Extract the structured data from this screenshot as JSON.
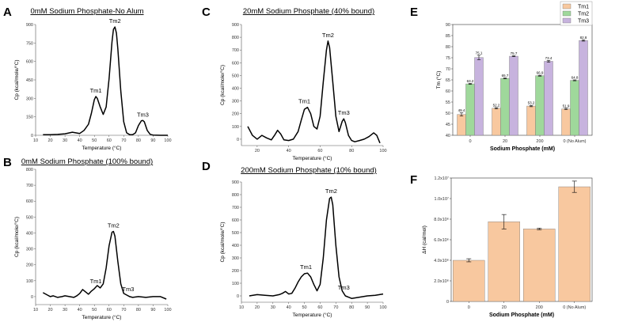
{
  "colors": {
    "tm1": "#f8c89f",
    "tm2": "#9fd89b",
    "tm3": "#c7b3de",
    "bar": "#f8c89f",
    "line": "#000000"
  },
  "chart_data": [
    {
      "id": "A",
      "type": "line",
      "title": "0mM Sodium Phosphate-No Alum",
      "xlabel": "Temperature (°C)",
      "ylabel": "Cp (kcal/mole/°C)",
      "xlim": [
        10,
        100
      ],
      "ylim": [
        0,
        900
      ],
      "xticks": [
        10,
        20,
        30,
        40,
        50,
        60,
        70,
        80,
        90,
        100
      ],
      "yticks": [
        0,
        150,
        300,
        450,
        600,
        750,
        900
      ],
      "x": [
        15,
        20,
        25,
        30,
        35,
        40,
        43,
        46,
        48,
        50,
        51,
        52,
        54,
        56,
        58,
        60,
        62,
        63,
        64,
        65,
        66,
        68,
        70,
        72,
        74,
        76,
        78,
        80,
        82,
        83,
        84,
        86,
        88,
        90,
        95,
        100
      ],
      "y": [
        5,
        5,
        7,
        12,
        25,
        15,
        40,
        90,
        180,
        290,
        315,
        300,
        230,
        170,
        230,
        460,
        760,
        860,
        880,
        830,
        700,
        360,
        110,
        20,
        5,
        5,
        20,
        80,
        118,
        120,
        110,
        40,
        8,
        2,
        0,
        0
      ],
      "annotations": [
        {
          "text": "Tm1",
          "x": 51,
          "y": 315
        },
        {
          "text": "Tm2",
          "x": 64,
          "y": 880
        },
        {
          "text": "Tm3",
          "x": 83,
          "y": 120
        }
      ]
    },
    {
      "id": "B",
      "type": "line",
      "title": "0mM Sodium Phosphate (100% bound)",
      "xlabel": "Temperature (°C)",
      "ylabel": "Cp (kcal/mole/°C)",
      "xlim": [
        10,
        100
      ],
      "ylim": [
        -50,
        800
      ],
      "xticks": [
        10,
        20,
        30,
        40,
        50,
        60,
        70,
        80,
        90,
        100
      ],
      "yticks": [
        0,
        100,
        200,
        300,
        400,
        500,
        600,
        700,
        800
      ],
      "x": [
        15,
        18,
        20,
        22,
        25,
        28,
        30,
        33,
        36,
        38,
        40,
        42,
        44,
        46,
        48,
        50,
        52,
        54,
        56,
        58,
        60,
        62,
        63,
        64,
        66,
        68,
        70,
        72,
        74,
        76,
        80,
        85,
        90,
        95,
        99
      ],
      "y": [
        25,
        10,
        0,
        5,
        -5,
        0,
        5,
        0,
        -5,
        5,
        20,
        45,
        30,
        15,
        35,
        50,
        70,
        55,
        80,
        180,
        320,
        405,
        410,
        380,
        220,
        80,
        20,
        10,
        0,
        -5,
        0,
        -5,
        0,
        0,
        -15
      ],
      "annotations": [
        {
          "text": "Tm1",
          "x": 51,
          "y": 60
        },
        {
          "text": "Tm2",
          "x": 63,
          "y": 410
        },
        {
          "text": "Tm3",
          "x": 73,
          "y": 10
        }
      ]
    },
    {
      "id": "C",
      "type": "line",
      "title": "20mM Sodium Phosphate (40% bound)",
      "xlabel": "Temperature (°C)",
      "ylabel": "Cp (kcal/mole/°C)",
      "xlim": [
        10,
        100
      ],
      "ylim": [
        -50,
        900
      ],
      "xticks": [
        20,
        40,
        60,
        80,
        100
      ],
      "yticks": [
        0,
        100,
        200,
        300,
        400,
        500,
        600,
        700,
        800,
        900
      ],
      "x": [
        14,
        17,
        20,
        23,
        26,
        29,
        31,
        33,
        35,
        37,
        40,
        43,
        46,
        48,
        50,
        52,
        54,
        56,
        58,
        60,
        62,
        64,
        65,
        66,
        68,
        70,
        72,
        74,
        75,
        76,
        78,
        80,
        82,
        85,
        88,
        91,
        94,
        96,
        98
      ],
      "y": [
        100,
        30,
        0,
        30,
        10,
        -5,
        30,
        70,
        40,
        -5,
        -10,
        0,
        60,
        150,
        235,
        250,
        200,
        100,
        80,
        180,
        450,
        700,
        770,
        720,
        450,
        180,
        60,
        140,
        160,
        130,
        30,
        -10,
        -20,
        -10,
        0,
        20,
        50,
        30,
        -30
      ],
      "annotations": [
        {
          "text": "Tm1",
          "x": 50,
          "y": 250
        },
        {
          "text": "Tm2",
          "x": 65,
          "y": 770
        },
        {
          "text": "Tm3",
          "x": 75,
          "y": 160
        }
      ]
    },
    {
      "id": "D",
      "type": "line",
      "title": "200mM Sodium Phosphate (10% bound)",
      "xlabel": "Temperature (°C)",
      "ylabel": "Cp (kcal/mole/°C)",
      "xlim": [
        10,
        100
      ],
      "ylim": [
        -50,
        900
      ],
      "xticks": [
        10,
        20,
        30,
        40,
        50,
        60,
        70,
        80,
        90,
        100
      ],
      "yticks": [
        0,
        100,
        200,
        300,
        400,
        500,
        600,
        700,
        800,
        900
      ],
      "x": [
        15,
        20,
        25,
        30,
        34,
        36,
        38,
        40,
        42,
        44,
        46,
        48,
        50,
        52,
        54,
        56,
        58,
        60,
        62,
        64,
        66,
        67,
        68,
        70,
        72,
        74,
        76,
        78,
        80,
        85,
        90,
        95,
        100
      ],
      "y": [
        0,
        10,
        5,
        0,
        10,
        20,
        35,
        15,
        20,
        60,
        110,
        150,
        175,
        180,
        150,
        90,
        40,
        90,
        300,
        600,
        770,
        780,
        720,
        400,
        150,
        40,
        0,
        -10,
        -20,
        -10,
        0,
        5,
        15
      ],
      "annotations": [
        {
          "text": "Tm1",
          "x": 51,
          "y": 180
        },
        {
          "text": "Tm2",
          "x": 67,
          "y": 780
        },
        {
          "text": "Tm3",
          "x": 75,
          "y": 20
        }
      ]
    },
    {
      "id": "E",
      "type": "bar",
      "xlabel": "Sodium Phosphate (mM)",
      "ylabel": "Tm (°C)",
      "ylim": [
        40,
        90
      ],
      "yticks": [
        40,
        45,
        50,
        55,
        60,
        65,
        70,
        75,
        80,
        85,
        90
      ],
      "categories": [
        "0",
        "20",
        "200",
        "0 (No Alum)"
      ],
      "legend": "top-right",
      "series": [
        {
          "name": "Tm1",
          "values": [
            49.4,
            52.2,
            53.2,
            51.9
          ],
          "labels": [
            "49.4",
            "52.2",
            "53.2",
            "51.9"
          ],
          "errors": [
            0.7,
            0.3,
            0.3,
            0.3
          ]
        },
        {
          "name": "Tm2",
          "values": [
            63.2,
            65.7,
            66.9,
            64.8
          ],
          "labels": [
            "63.2",
            "65.7",
            "66.9",
            "64.8"
          ],
          "errors": [
            0.2,
            0.2,
            0.2,
            0.2
          ]
        },
        {
          "name": "Tm3",
          "values": [
            75.1,
            75.7,
            73.4,
            82.8
          ],
          "labels": [
            "75.1",
            "75.7",
            "73.4",
            "82.8"
          ],
          "errors": [
            1.0,
            0.2,
            0.4,
            0.3
          ]
        }
      ]
    },
    {
      "id": "F",
      "type": "bar",
      "xlabel": "Sodium Phosphate (mM)",
      "ylabel": "ΔH (cal/mol)",
      "ylim": [
        0,
        12000000
      ],
      "yticks": [
        0,
        2000000,
        4000000,
        6000000,
        8000000,
        10000000,
        12000000
      ],
      "yticklabels": [
        "0",
        "2.0x10⁶",
        "4.0x10⁶",
        "6.0x10⁶",
        "8.0x10⁶",
        "1.0x10⁷",
        "1.2x10⁷"
      ],
      "categories": [
        "0",
        "20",
        "200",
        "0 (No Alum)"
      ],
      "values": [
        4000000,
        7750000,
        7050000,
        11150000
      ],
      "errors": [
        150000,
        700000,
        80000,
        550000
      ]
    }
  ]
}
